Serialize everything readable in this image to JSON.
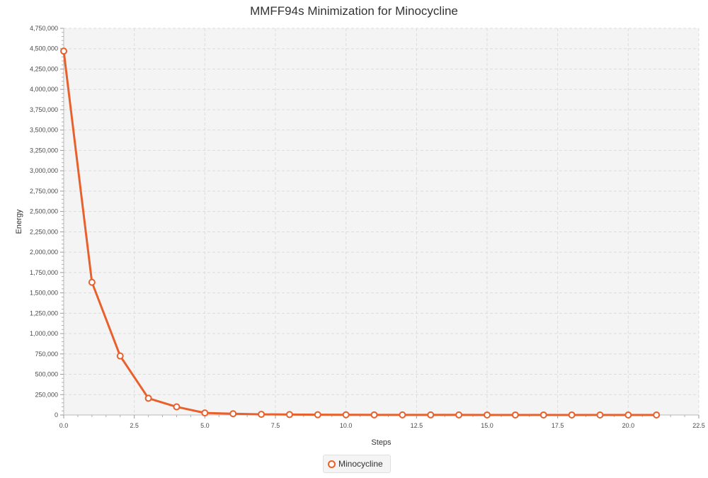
{
  "chart_data": {
    "type": "line",
    "title": "MMFF94s Minimization for Minocycline",
    "xlabel": "Steps",
    "ylabel": "Energy",
    "xlim": [
      0,
      22.5
    ],
    "ylim": [
      0,
      4750000
    ],
    "x_ticks": [
      0,
      2.5,
      5,
      7.5,
      10,
      12.5,
      15,
      17.5,
      20,
      22.5
    ],
    "x_tick_labels": [
      "0.0",
      "2.5",
      "5.0",
      "7.5",
      "10.0",
      "12.5",
      "15.0",
      "17.5",
      "20.0",
      "22.5"
    ],
    "y_ticks": [
      0,
      250000,
      500000,
      750000,
      1000000,
      1250000,
      1500000,
      1750000,
      2000000,
      2250000,
      2500000,
      2750000,
      3000000,
      3250000,
      3500000,
      3750000,
      4000000,
      4250000,
      4500000,
      4750000
    ],
    "y_tick_labels": [
      "0",
      "250,000",
      "500,000",
      "750,000",
      "1,000,000",
      "1,250,000",
      "1,500,000",
      "1,750,000",
      "2,000,000",
      "2,250,000",
      "2,500,000",
      "2,750,000",
      "3,000,000",
      "3,250,000",
      "3,500,000",
      "3,750,000",
      "4,000,000",
      "4,250,000",
      "4,500,000",
      "4,750,000"
    ],
    "grid": true,
    "legend": "bottom",
    "series": [
      {
        "name": "Minocycline",
        "color": "#e8602c",
        "x": [
          0,
          1,
          2,
          3,
          4,
          5,
          6,
          7,
          8,
          9,
          10,
          11,
          12,
          13,
          14,
          15,
          16,
          17,
          18,
          19,
          20,
          21
        ],
        "y": [
          4470000,
          1630000,
          725000,
          205000,
          100000,
          25000,
          15000,
          8000,
          5000,
          3000,
          2000,
          1500,
          1000,
          800,
          600,
          500,
          400,
          300,
          250,
          200,
          150,
          100
        ]
      }
    ]
  }
}
